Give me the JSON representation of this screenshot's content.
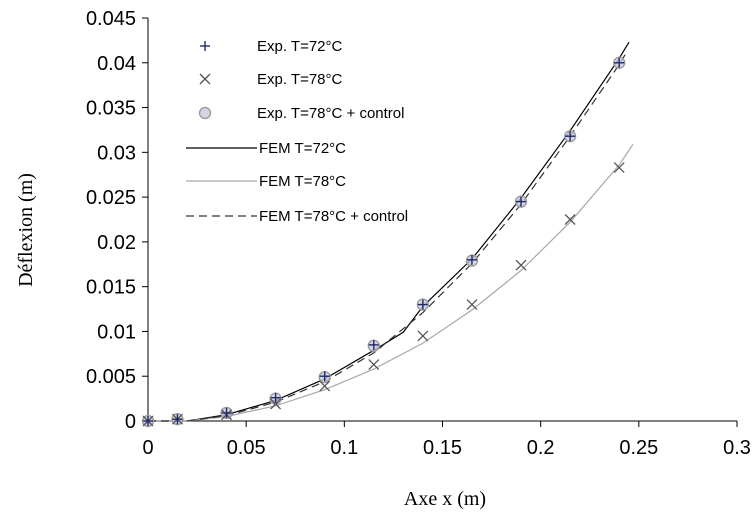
{
  "chart_data": {
    "type": "scatter",
    "xlabel": "Axe x (m)",
    "ylabel": "Déflexion (m)",
    "xlim": [
      0,
      0.3
    ],
    "ylim": [
      0,
      0.045
    ],
    "xticks": [
      0,
      0.05,
      0.1,
      0.15,
      0.2,
      0.25,
      0.3
    ],
    "yticks": [
      0,
      0.005,
      0.01,
      0.015,
      0.02,
      0.025,
      0.03,
      0.035,
      0.04,
      0.045
    ],
    "xtick_labels": [
      "0",
      "0.05",
      "0.1",
      "0.15",
      "0.2",
      "0.25",
      "0.3"
    ],
    "ytick_labels": [
      "0",
      "0.005",
      "0.01",
      "0.015",
      "0.02",
      "0.025",
      "0.03",
      "0.035",
      "0.04",
      "0.045"
    ],
    "grid": false,
    "legend_position": "top-left",
    "series": [
      {
        "name": "Exp. T=72°C",
        "kind": "marker",
        "marker": "plus",
        "color": "#1f2a6e",
        "x": [
          0,
          0.015,
          0.04,
          0.065,
          0.09,
          0.115,
          0.14,
          0.165,
          0.19,
          0.215,
          0.24
        ],
        "y": [
          0,
          0.0002,
          0.0009,
          0.0026,
          0.005,
          0.0085,
          0.013,
          0.018,
          0.0245,
          0.0318,
          0.04
        ]
      },
      {
        "name": "Exp. T=78°C",
        "kind": "marker",
        "marker": "cross",
        "color": "#555555",
        "x": [
          0,
          0.015,
          0.04,
          0.065,
          0.09,
          0.115,
          0.14,
          0.165,
          0.19,
          0.215,
          0.24
        ],
        "y": [
          0,
          0.0002,
          0.0007,
          0.0019,
          0.0039,
          0.0063,
          0.0095,
          0.013,
          0.0174,
          0.0225,
          0.0283
        ]
      },
      {
        "name": "Exp. T=78°C + control",
        "kind": "marker",
        "marker": "circle",
        "color": "#999999",
        "fill": "#c8ccd8",
        "x": [
          0,
          0.015,
          0.04,
          0.065,
          0.09,
          0.115,
          0.14,
          0.165,
          0.19,
          0.215,
          0.24
        ],
        "y": [
          0,
          0.0002,
          0.0009,
          0.0025,
          0.0049,
          0.0084,
          0.013,
          0.0179,
          0.0245,
          0.0318,
          0.04
        ]
      },
      {
        "name": "FEM T=72°C",
        "kind": "line",
        "style": "solid",
        "color": "#000000",
        "x": [
          0,
          0.02,
          0.04,
          0.065,
          0.09,
          0.115,
          0.13,
          0.14,
          0.165,
          0.19,
          0.215,
          0.24,
          0.245
        ],
        "y": [
          0,
          0,
          0.0007,
          0.0023,
          0.0047,
          0.0079,
          0.0099,
          0.0128,
          0.0181,
          0.0249,
          0.0324,
          0.0405,
          0.0423
        ]
      },
      {
        "name": "FEM T=78°C",
        "kind": "line",
        "style": "solid",
        "color": "#a8a8a8",
        "x": [
          0,
          0.02,
          0.04,
          0.065,
          0.09,
          0.115,
          0.14,
          0.165,
          0.19,
          0.215,
          0.24,
          0.247
        ],
        "y": [
          0,
          0,
          0.0005,
          0.0017,
          0.0035,
          0.0058,
          0.0087,
          0.0124,
          0.0168,
          0.0222,
          0.0286,
          0.0309
        ]
      },
      {
        "name": "FEM T=78°C + control",
        "kind": "line",
        "style": "dashed",
        "color": "#333333",
        "x": [
          0,
          0.02,
          0.04,
          0.065,
          0.09,
          0.115,
          0.14,
          0.165,
          0.19,
          0.215,
          0.24,
          0.243
        ],
        "y": [
          0,
          0,
          0.0006,
          0.0021,
          0.0044,
          0.0076,
          0.0121,
          0.0176,
          0.0242,
          0.0318,
          0.0398,
          0.0409
        ]
      }
    ]
  }
}
